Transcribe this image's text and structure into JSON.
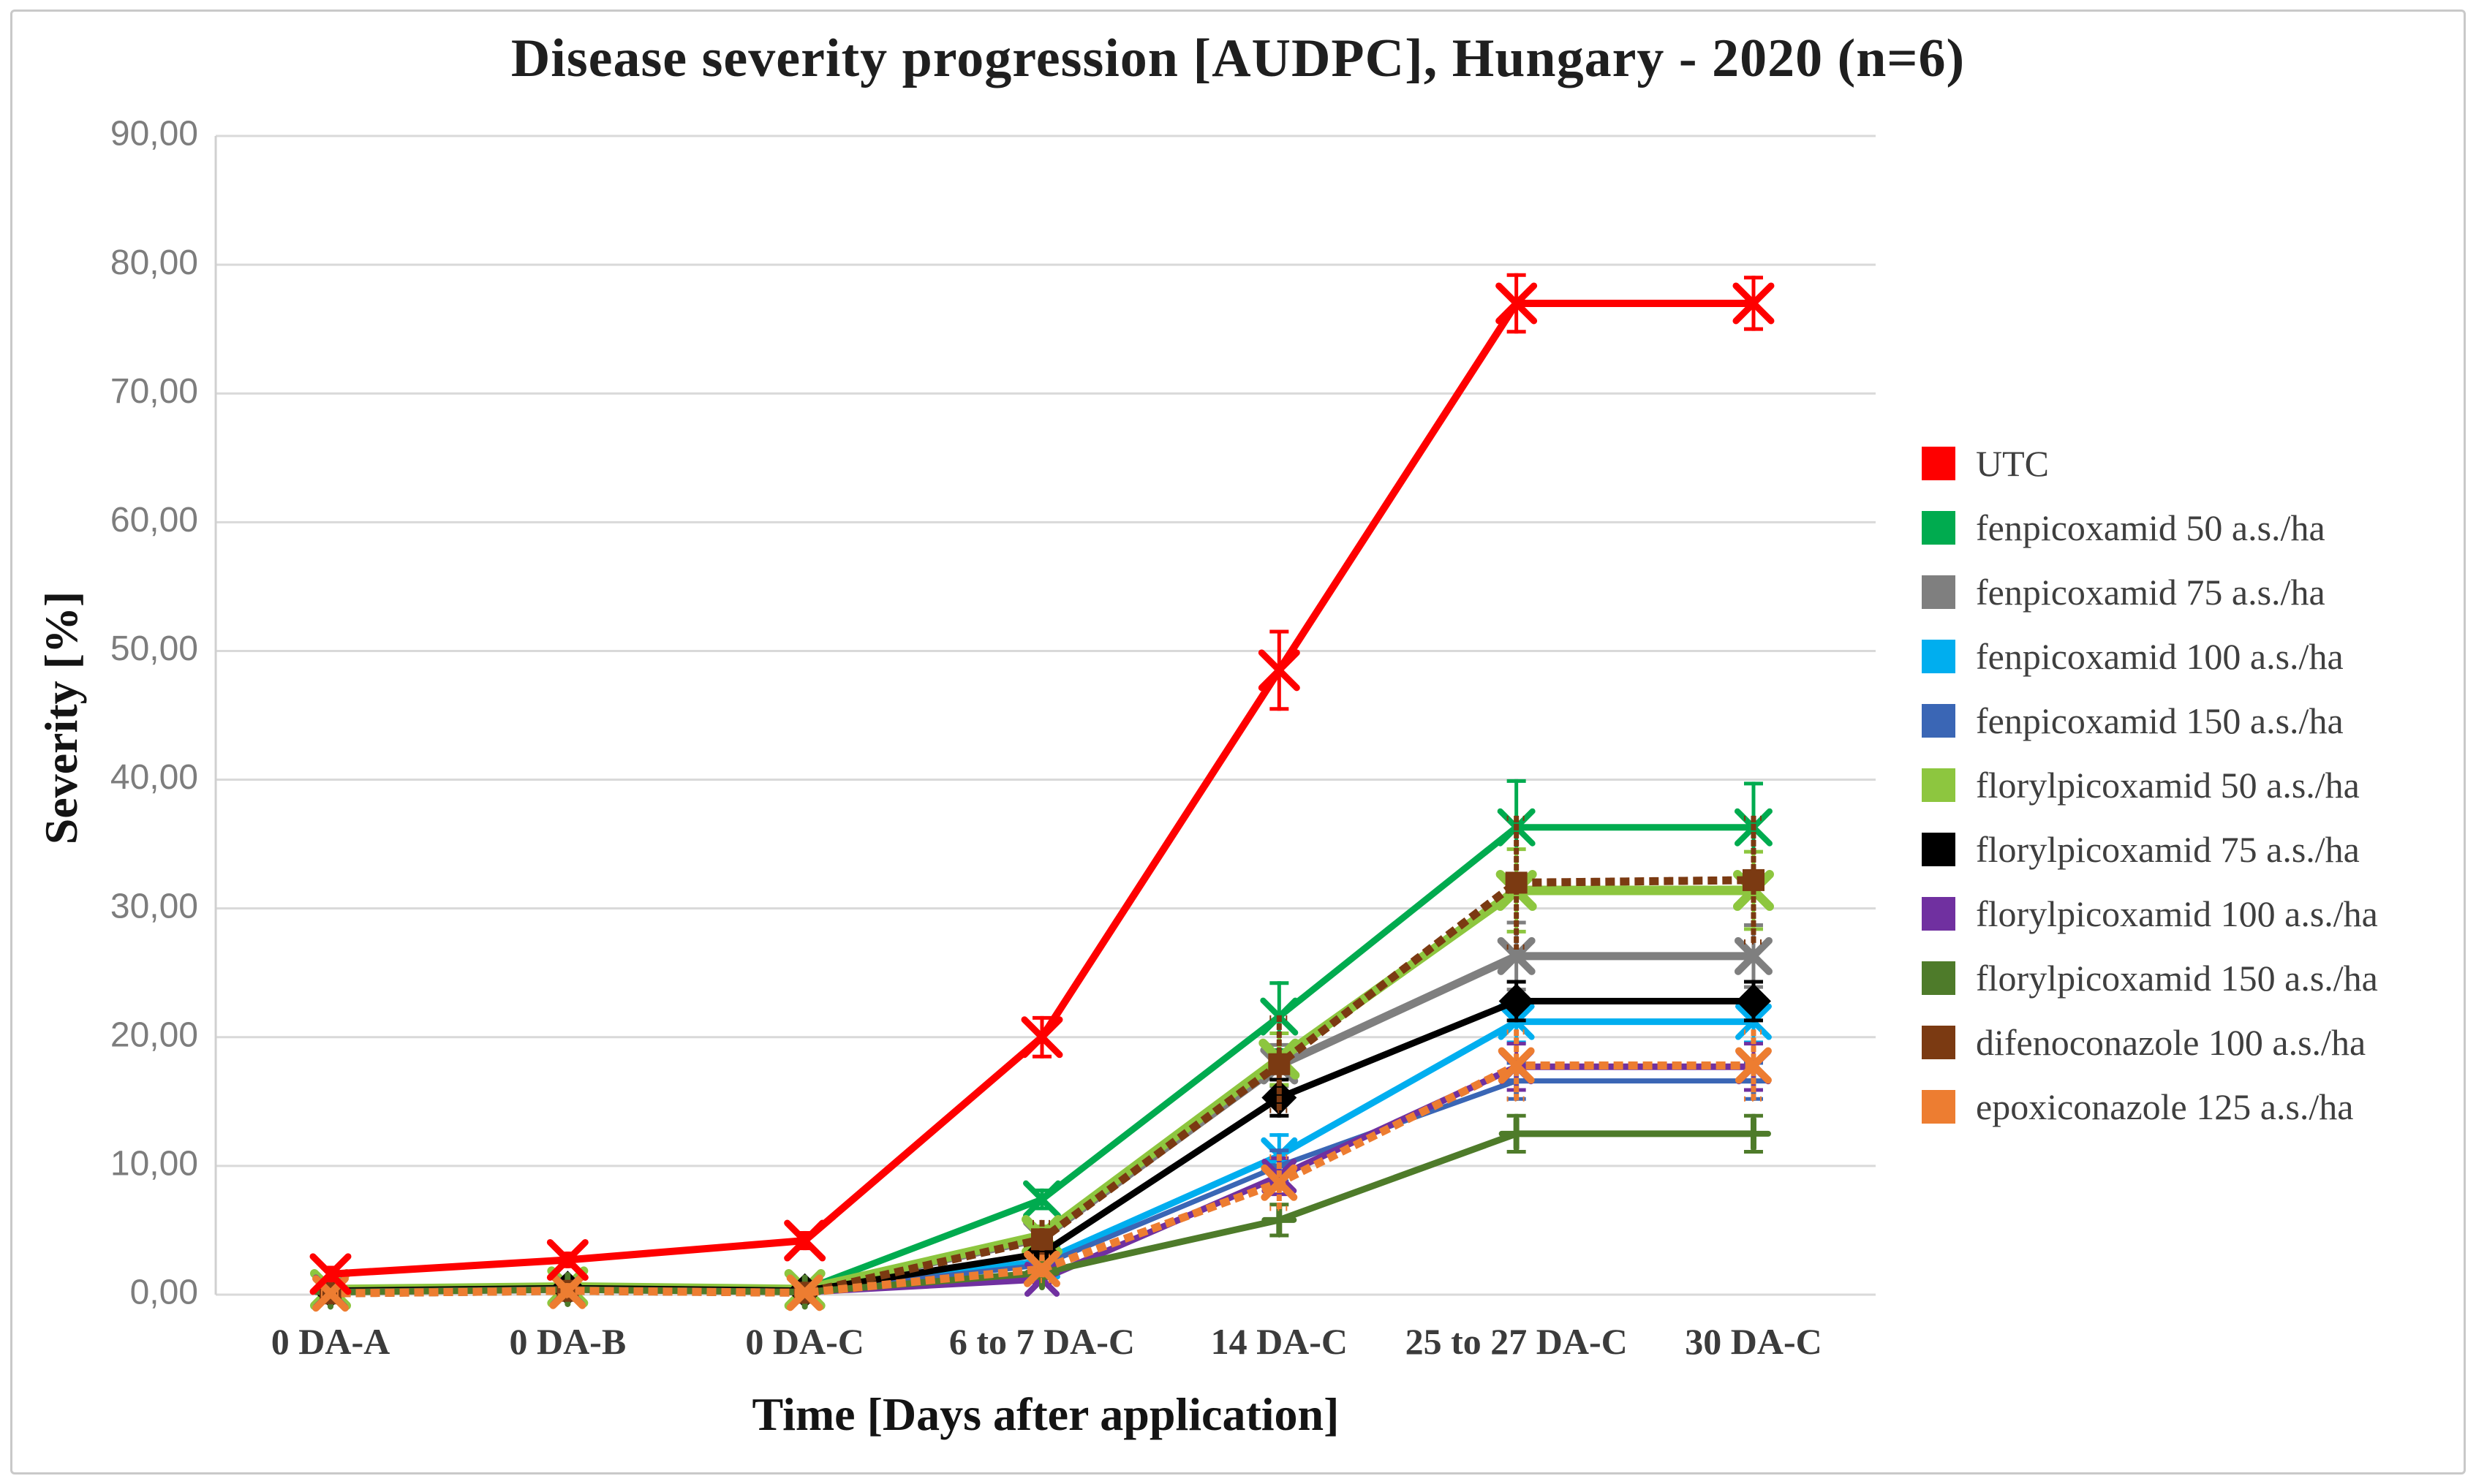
{
  "figure": {
    "title": "Disease severity progression [AUDPC], Hungary - 2020 (n=6)",
    "x_axis_title": "Time [Days after application]",
    "y_axis_title": "Severity [%]"
  },
  "colors": {
    "background": "#ffffff",
    "figure_border": "#c9c9c9",
    "gridline": "#d9d9d9",
    "axis_line": "#d0d0d0",
    "y_tick_label": "#7d7d7d",
    "x_tick_label": "#3b3b3b",
    "title_text": "#1f1f1f",
    "legend_text": "#3f3f3f"
  },
  "chart_data": {
    "type": "line",
    "title": "Disease severity progression [AUDPC], Hungary - 2020 (n=6)",
    "xlabel": "Time [Days after application]",
    "ylabel": "Severity [%]",
    "categories": [
      "0 DA-A",
      "0 DA-B",
      "0 DA-C",
      "6 to 7 DA-C",
      "14 DA-C",
      "25 to 27 DA-C",
      "30 DA-C"
    ],
    "ylim": [
      0,
      90
    ],
    "y_tick_step": 10,
    "y_ticks": [
      "0,00",
      "10,00",
      "20,00",
      "30,00",
      "40,00",
      "50,00",
      "60,00",
      "70,00",
      "80,00",
      "90,00"
    ],
    "grid": true,
    "legend_position": "right",
    "series": [
      {
        "name": "UTC",
        "color": "#fe0000",
        "dash": "solid",
        "marker": "x",
        "width": 10,
        "marker_size": 24,
        "values": [
          1.6,
          2.7,
          4.2,
          20.0,
          48.5,
          77.0,
          77.0
        ],
        "errors": [
          0.5,
          0.5,
          0.6,
          1.5,
          3.0,
          2.2,
          2.0
        ]
      },
      {
        "name": "fenpicoxamid 50 a.s./ha",
        "color": "#00ab4f",
        "dash": "solid",
        "marker": "x",
        "width": 9,
        "marker_size": 22,
        "values": [
          0.4,
          0.6,
          0.4,
          7.4,
          21.6,
          36.3,
          36.3
        ],
        "errors": [
          0.2,
          0.3,
          0.2,
          0.7,
          2.6,
          3.6,
          3.4
        ]
      },
      {
        "name": "fenpicoxamid 75 a.s./ha",
        "color": "#7f7f7f",
        "dash": "solid",
        "marker": "x",
        "width": 11,
        "marker_size": 21,
        "values": [
          0.4,
          0.6,
          0.3,
          4.4,
          17.8,
          26.3,
          26.3
        ],
        "errors": [
          0.2,
          0.3,
          0.2,
          0.6,
          1.6,
          2.6,
          2.4
        ]
      },
      {
        "name": "fenpicoxamid 100 a.s./ha",
        "color": "#00aeef",
        "dash": "solid",
        "marker": "x",
        "width": 9,
        "marker_size": 21,
        "values": [
          0.3,
          0.5,
          0.3,
          2.6,
          10.8,
          21.2,
          21.2
        ],
        "errors": [
          0.2,
          0.3,
          0.2,
          0.5,
          1.6,
          1.6,
          1.6
        ]
      },
      {
        "name": "fenpicoxamid 150 a.s./ha",
        "color": "#3a66b5",
        "dash": "solid",
        "marker": "plus",
        "width": 7,
        "marker_size": 18,
        "values": [
          0.3,
          0.5,
          0.3,
          2.3,
          10.0,
          16.6,
          16.6
        ],
        "errors": [
          0.2,
          0.2,
          0.2,
          0.4,
          1.2,
          1.4,
          1.4
        ]
      },
      {
        "name": "florylpicoxamid 50 a.s./ha",
        "color": "#8dc63f",
        "dash": "solid",
        "marker": "x",
        "width": 13,
        "marker_size": 22,
        "values": [
          0.4,
          0.6,
          0.4,
          4.6,
          18.3,
          31.4,
          31.4
        ],
        "errors": [
          0.2,
          0.3,
          0.2,
          0.7,
          2.0,
          3.2,
          3.0
        ]
      },
      {
        "name": "florylpicoxamid 75 a.s./ha",
        "color": "#000000",
        "dash": "solid",
        "marker": "diamond",
        "width": 9,
        "marker_size": 24,
        "values": [
          0.3,
          0.5,
          0.3,
          3.2,
          15.3,
          22.8,
          22.8
        ],
        "errors": [
          0.2,
          0.2,
          0.2,
          0.5,
          1.4,
          1.5,
          1.5
        ]
      },
      {
        "name": "florylpicoxamid 100 a.s./ha",
        "color": "#7030a0",
        "dash": "solid",
        "marker": "x",
        "width": 9,
        "marker_size": 20,
        "values": [
          0.2,
          0.4,
          0.2,
          1.2,
          9.2,
          17.7,
          17.7
        ],
        "errors": [
          0.2,
          0.2,
          0.2,
          0.4,
          1.4,
          1.8,
          1.8
        ]
      },
      {
        "name": "florylpicoxamid 150 a.s./ha",
        "color": "#4e7b2a",
        "dash": "solid",
        "marker": "plus",
        "width": 9,
        "marker_size": 20,
        "values": [
          0.2,
          0.4,
          0.2,
          1.7,
          5.8,
          12.5,
          12.5
        ],
        "errors": [
          0.2,
          0.2,
          0.2,
          0.4,
          1.2,
          1.4,
          1.4
        ]
      },
      {
        "name": "difenoconazole 100 a.s./ha",
        "color": "#7b3a12",
        "dash": "dotted",
        "marker": "square",
        "width": 11,
        "marker_size": 15,
        "values": [
          0.1,
          0.3,
          0.15,
          4.3,
          17.9,
          32.0,
          32.2
        ],
        "errors": [
          0.1,
          0.4,
          0.2,
          1.3,
          3.6,
          5.0,
          4.8
        ]
      },
      {
        "name": "epoxiconazole 125 a.s./ha",
        "color": "#ed7d31",
        "dash": "dotted",
        "marker": "x",
        "width": 11,
        "marker_size": 20,
        "values": [
          0.1,
          0.3,
          0.15,
          2.0,
          8.7,
          17.8,
          17.8
        ],
        "errors": [
          0.1,
          0.4,
          0.2,
          0.9,
          2.0,
          2.6,
          2.6
        ]
      }
    ]
  }
}
